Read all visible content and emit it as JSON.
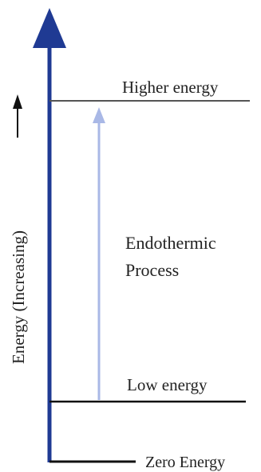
{
  "diagram": {
    "axis_label": "Energy (Increasing)",
    "levels": {
      "higher": "Higher energy",
      "low": "Low energy",
      "zero": "Zero Energy"
    },
    "process": {
      "line1": "Endothermic",
      "line2": "Process"
    },
    "colors": {
      "axis": "#1f3a93",
      "transition_arrow": "#a9b8e6",
      "level_line": "#222222",
      "text": "#222222"
    }
  }
}
